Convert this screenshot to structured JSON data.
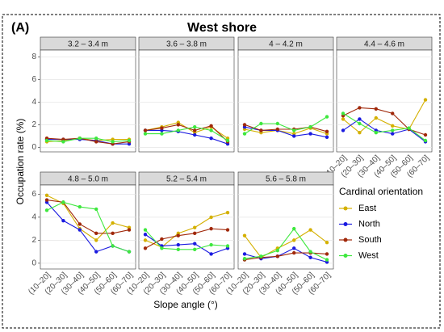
{
  "figure": {
    "label": "(A)",
    "title": "West shore",
    "y_label": "Occupation rate (%)",
    "x_label": "Slope angle (°)",
    "legend_title": "Cardinal orientation"
  },
  "chart_data": [
    {
      "type": "line",
      "title": "3.2 – 3.4 m",
      "ylim": [
        -0.4,
        8.6
      ],
      "yticks": [
        0,
        2,
        4,
        6,
        8
      ],
      "series": [
        {
          "name": "East",
          "color": "#d4b000",
          "values": [
            0.5,
            0.6,
            0.8,
            0.6,
            0.7,
            0.7
          ]
        },
        {
          "name": "North",
          "color": "#1a1ae0",
          "values": [
            0.7,
            0.7,
            0.7,
            0.6,
            0.3,
            0.3
          ]
        },
        {
          "name": "South",
          "color": "#a0280a",
          "values": [
            0.8,
            0.7,
            0.8,
            0.5,
            0.3,
            0.5
          ]
        },
        {
          "name": "West",
          "color": "#3ee83e",
          "values": [
            0.6,
            0.5,
            0.8,
            0.8,
            0.5,
            0.6
          ]
        }
      ]
    },
    {
      "type": "line",
      "title": "3.6 – 3.8 m",
      "ylim": [
        -0.4,
        8.6
      ],
      "yticks": [
        0,
        2,
        4,
        6,
        8
      ],
      "series": [
        {
          "name": "East",
          "color": "#d4b000",
          "values": [
            1.5,
            1.8,
            2.2,
            1.3,
            1.8,
            0.8
          ]
        },
        {
          "name": "North",
          "color": "#1a1ae0",
          "values": [
            1.5,
            1.5,
            1.4,
            1.1,
            0.8,
            0.3
          ]
        },
        {
          "name": "South",
          "color": "#a0280a",
          "values": [
            1.5,
            1.7,
            2.0,
            1.5,
            1.9,
            0.5
          ]
        },
        {
          "name": "West",
          "color": "#3ee83e",
          "values": [
            1.2,
            1.2,
            1.5,
            1.8,
            1.5,
            0.6
          ]
        }
      ]
    },
    {
      "type": "line",
      "title": "4 – 4.2 m",
      "ylim": [
        -0.4,
        8.6
      ],
      "yticks": [
        0,
        2,
        4,
        6,
        8
      ],
      "series": [
        {
          "name": "East",
          "color": "#d4b000",
          "values": [
            1.6,
            1.3,
            1.5,
            1.2,
            1.7,
            1.2
          ]
        },
        {
          "name": "North",
          "color": "#1a1ae0",
          "values": [
            1.8,
            1.5,
            1.5,
            1.0,
            1.2,
            0.9
          ]
        },
        {
          "name": "South",
          "color": "#a0280a",
          "values": [
            2.0,
            1.5,
            1.6,
            1.6,
            1.8,
            1.4
          ]
        },
        {
          "name": "West",
          "color": "#3ee83e",
          "values": [
            1.2,
            2.1,
            2.1,
            1.5,
            1.8,
            2.7
          ]
        }
      ]
    },
    {
      "type": "line",
      "title": "4.4 – 4.6 m",
      "ylim": [
        -0.4,
        8.6
      ],
      "yticks": [
        0,
        2,
        4,
        6,
        8
      ],
      "categories": [
        "(10–20]",
        "(20–30]",
        "(30–40]",
        "(40–50]",
        "(50–60]",
        "(60–70]"
      ],
      "series": [
        {
          "name": "East",
          "color": "#d4b000",
          "values": [
            2.5,
            1.3,
            2.6,
            1.9,
            1.6,
            4.2
          ]
        },
        {
          "name": "North",
          "color": "#1a1ae0",
          "values": [
            1.5,
            2.5,
            1.5,
            1.2,
            1.6,
            0.5
          ]
        },
        {
          "name": "South",
          "color": "#a0280a",
          "values": [
            2.8,
            3.5,
            3.4,
            3.0,
            1.6,
            1.1
          ]
        },
        {
          "name": "West",
          "color": "#3ee83e",
          "values": [
            3.0,
            2.1,
            1.3,
            1.5,
            1.7,
            0.6
          ]
        }
      ]
    },
    {
      "type": "line",
      "title": "4.8 – 5.0 m",
      "ylim": [
        -0.5,
        6.8
      ],
      "yticks": [
        0,
        2,
        4,
        6
      ],
      "categories": [
        "(10–20]",
        "(20–30]",
        "(30–40]",
        "(40–50]",
        "(50–60]",
        "(60–70]"
      ],
      "series": [
        {
          "name": "East",
          "color": "#d4b000",
          "values": [
            5.9,
            5.2,
            3.0,
            2.0,
            3.5,
            3.1
          ]
        },
        {
          "name": "North",
          "color": "#1a1ae0",
          "values": [
            5.3,
            3.7,
            2.9,
            1.0,
            1.5,
            1.0
          ]
        },
        {
          "name": "South",
          "color": "#a0280a",
          "values": [
            5.5,
            5.3,
            3.4,
            2.6,
            2.6,
            2.9
          ]
        },
        {
          "name": "West",
          "color": "#3ee83e",
          "values": [
            4.6,
            5.3,
            4.9,
            4.7,
            1.5,
            1.0
          ]
        }
      ]
    },
    {
      "type": "line",
      "title": "5.2 – 5.4 m",
      "ylim": [
        -0.5,
        6.8
      ],
      "yticks": [
        0,
        2,
        4,
        6
      ],
      "categories": [
        "(10–20]",
        "(20–30]",
        "(30–40]",
        "(40–50]",
        "(50–60]",
        "(60–70]"
      ],
      "series": [
        {
          "name": "East",
          "color": "#d4b000",
          "values": [
            2.0,
            1.4,
            2.6,
            3.1,
            4.0,
            4.4
          ]
        },
        {
          "name": "North",
          "color": "#1a1ae0",
          "values": [
            2.5,
            1.5,
            1.6,
            1.7,
            0.8,
            1.3
          ]
        },
        {
          "name": "South",
          "color": "#a0280a",
          "values": [
            1.3,
            2.1,
            2.4,
            2.6,
            3.0,
            2.9
          ]
        },
        {
          "name": "West",
          "color": "#3ee83e",
          "values": [
            2.9,
            1.3,
            1.2,
            1.2,
            1.6,
            1.5
          ]
        }
      ]
    },
    {
      "type": "line",
      "title": "5.6 – 5.8 m",
      "ylim": [
        -0.5,
        6.8
      ],
      "yticks": [
        0,
        2,
        4,
        6
      ],
      "categories": [
        "(10–20]",
        "(20–30]",
        "(30–40]",
        "(40–50]",
        "(50–60]",
        "(60–70]"
      ],
      "series": [
        {
          "name": "East",
          "color": "#d4b000",
          "values": [
            2.4,
            0.5,
            1.3,
            2.0,
            2.9,
            1.8
          ]
        },
        {
          "name": "North",
          "color": "#1a1ae0",
          "values": [
            0.8,
            0.4,
            0.6,
            1.3,
            0.5,
            0.1
          ]
        },
        {
          "name": "South",
          "color": "#a0280a",
          "values": [
            0.3,
            0.5,
            0.6,
            0.9,
            0.9,
            0.8
          ]
        },
        {
          "name": "West",
          "color": "#3ee83e",
          "values": [
            0.4,
            0.6,
            1.1,
            3.0,
            1.0,
            0.3
          ]
        }
      ]
    }
  ]
}
